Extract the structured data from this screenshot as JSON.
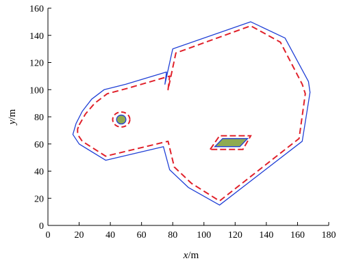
{
  "chart_data": {
    "type": "line",
    "xlabel_var": "x",
    "xlabel_unit": "/m",
    "ylabel_var": "y",
    "ylabel_unit": "/m",
    "xlim": [
      0,
      180
    ],
    "ylim": [
      0,
      160
    ],
    "xticks": [
      0,
      20,
      40,
      60,
      80,
      100,
      120,
      140,
      160,
      180
    ],
    "yticks": [
      0,
      20,
      40,
      60,
      80,
      100,
      120,
      140,
      160
    ],
    "grid": false,
    "colors": {
      "outer": "#1f3fd6",
      "offset": "#e0202a",
      "obstacle_fill": "#8faa50",
      "obstacle_outline": "#1f3fd6"
    },
    "series": [
      {
        "style": "solid",
        "points": [
          [
            18,
            75
          ],
          [
            22,
            84
          ],
          [
            28,
            93
          ],
          [
            36,
            100
          ],
          [
            50,
            104
          ],
          [
            76,
            113
          ],
          [
            75,
            104
          ],
          [
            80,
            130
          ],
          [
            130,
            150
          ],
          [
            152,
            138
          ],
          [
            167,
            106
          ],
          [
            168,
            98
          ],
          [
            163,
            62
          ],
          [
            110,
            15
          ],
          [
            90,
            28
          ],
          [
            78,
            41
          ],
          [
            74,
            58
          ],
          [
            37,
            48
          ],
          [
            20,
            60
          ],
          [
            16,
            67
          ],
          [
            17,
            71
          ],
          [
            18,
            75
          ]
        ]
      },
      {
        "style": "dashed",
        "points": [
          [
            20,
            74
          ],
          [
            24,
            82
          ],
          [
            30,
            90
          ],
          [
            38,
            97
          ],
          [
            51,
            101
          ],
          [
            78,
            110
          ],
          [
            77,
            100
          ],
          [
            82,
            127
          ],
          [
            130,
            147
          ],
          [
            149,
            135
          ],
          [
            163,
            104
          ],
          [
            165,
            97
          ],
          [
            161,
            64
          ],
          [
            110,
            18
          ],
          [
            92,
            31
          ],
          [
            81,
            43
          ],
          [
            77,
            62
          ],
          [
            37,
            51
          ],
          [
            22,
            62
          ],
          [
            19,
            67
          ],
          [
            19,
            71
          ],
          [
            20,
            74
          ]
        ]
      }
    ],
    "obstacles": [
      {
        "shape": "ellipse",
        "center": [
          47,
          78
        ],
        "rx": 3,
        "ry": 3.3,
        "offset_center": [
          47,
          78
        ],
        "offset_rx": 5.5,
        "offset_ry": 5.5
      },
      {
        "shape": "polygon",
        "points": [
          [
            107,
            58
          ],
          [
            112,
            64
          ],
          [
            128,
            64
          ],
          [
            123,
            58
          ]
        ],
        "offset_points": [
          [
            104,
            56
          ],
          [
            110,
            66
          ],
          [
            130,
            66
          ],
          [
            125,
            56
          ]
        ]
      }
    ]
  }
}
